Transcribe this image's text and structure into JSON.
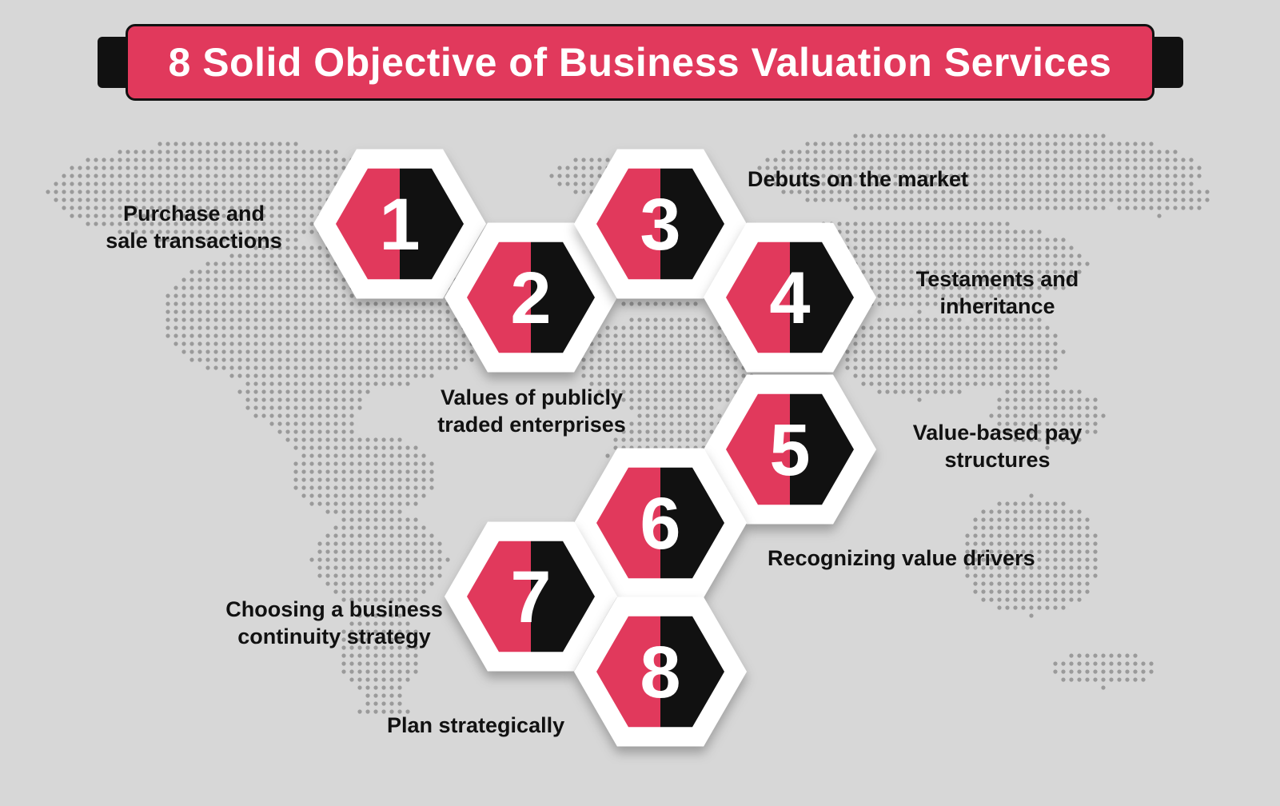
{
  "title": "8 Solid Objective of Business Valuation Services",
  "colors": {
    "accent": "#e1395c",
    "dark": "#111111",
    "background": "#d7d7d7",
    "map_dots": "#9a9a9a"
  },
  "items": [
    {
      "number": "1",
      "label_lines": [
        "Purchase and",
        "sale transactions"
      ]
    },
    {
      "number": "2",
      "label_lines": [
        "Values of publicly",
        "traded enterprises"
      ]
    },
    {
      "number": "3",
      "label_lines": [
        "Debuts on the market"
      ]
    },
    {
      "number": "4",
      "label_lines": [
        "Testaments and",
        "inheritance"
      ]
    },
    {
      "number": "5",
      "label_lines": [
        "Value-based pay",
        "structures"
      ]
    },
    {
      "number": "6",
      "label_lines": [
        "Recognizing value drivers"
      ]
    },
    {
      "number": "7",
      "label_lines": [
        "Choosing a business",
        "continuity strategy"
      ]
    },
    {
      "number": "8",
      "label_lines": [
        "Plan strategically"
      ]
    }
  ]
}
